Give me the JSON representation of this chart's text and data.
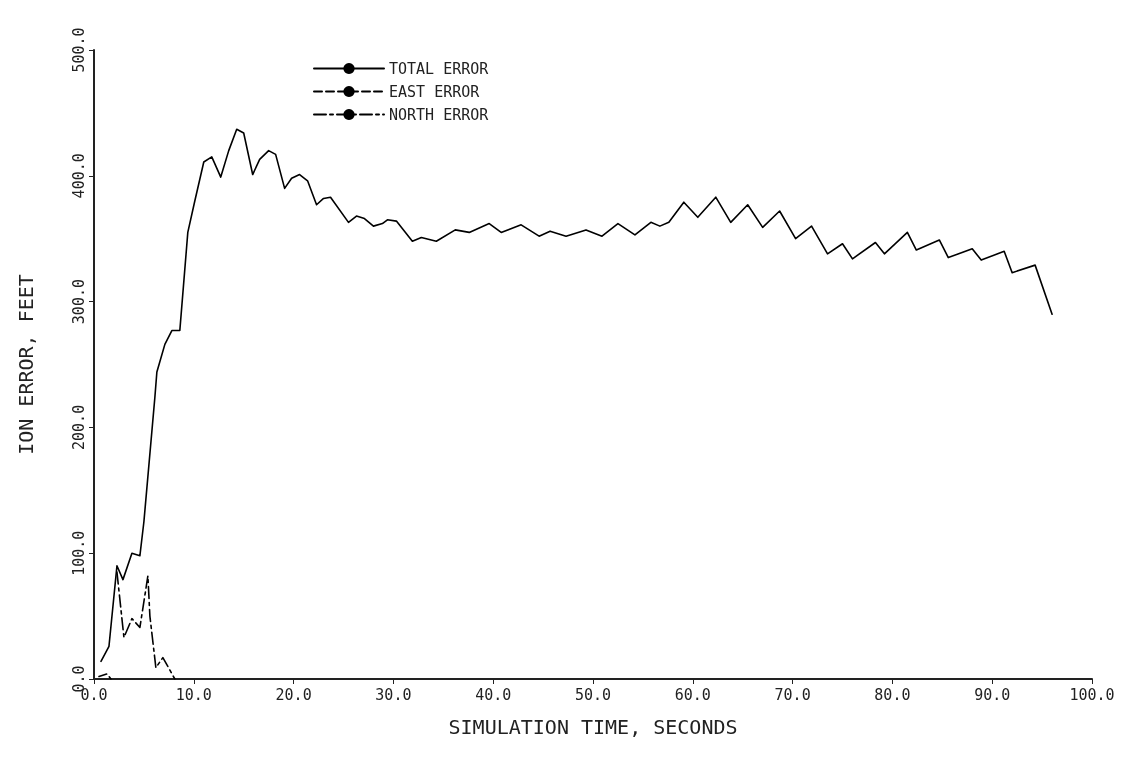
{
  "chart_data": {
    "type": "line",
    "xlabel": "SIMULATION TIME, SECONDS",
    "ylabel": "ION ERROR, FEET",
    "xlim": [
      0,
      100
    ],
    "ylim": [
      0,
      500
    ],
    "xticks": [
      {
        "value": 0,
        "label": "0.0"
      },
      {
        "value": 10,
        "label": "10.0"
      },
      {
        "value": 20,
        "label": "20.0"
      },
      {
        "value": 30,
        "label": "30.0"
      },
      {
        "value": 40,
        "label": "40.0"
      },
      {
        "value": 50,
        "label": "50.0"
      },
      {
        "value": 60,
        "label": "60.0"
      },
      {
        "value": 70,
        "label": "70.0"
      },
      {
        "value": 80,
        "label": "80.0"
      },
      {
        "value": 90,
        "label": "90.0"
      },
      {
        "value": 100,
        "label": "100.0"
      }
    ],
    "yticks": [
      {
        "value": 0,
        "label": "0.0"
      },
      {
        "value": 100,
        "label": "100.0"
      },
      {
        "value": 200,
        "label": "200.0"
      },
      {
        "value": 300,
        "label": "300.0"
      },
      {
        "value": 400,
        "label": "400.0"
      },
      {
        "value": 500,
        "label": "500.0"
      }
    ],
    "grid": false,
    "legend": "top left",
    "marker": "none",
    "series": [
      {
        "name": "TOTAL ERROR",
        "color": "#000000",
        "line_style": "solid",
        "x": [
          0.7,
          1.5,
          2.3,
          2.9,
          3.8,
          4.6,
          5.0,
          6.1,
          6.3,
          7.1,
          7.8,
          8.6,
          9.4,
          10.1,
          11.0,
          11.8,
          12.7,
          13.5,
          14.3,
          15.0,
          15.9,
          16.6,
          17.5,
          18.2,
          19.1,
          19.8,
          20.6,
          21.4,
          22.3,
          23.0,
          23.7,
          25.5,
          26.3,
          27.1,
          28.0,
          28.9,
          29.4,
          30.3,
          31.9,
          32.8,
          34.3,
          36.2,
          37.6,
          39.6,
          40.8,
          42.8,
          44.6,
          45.7,
          47.3,
          49.3,
          50.9,
          52.5,
          54.2,
          55.8,
          56.7,
          57.6,
          59.1,
          60.5,
          62.3,
          63.8,
          65.5,
          67.0,
          68.7,
          70.3,
          71.9,
          73.5,
          75.0,
          76.0,
          78.3,
          79.2,
          81.5,
          82.4,
          84.7,
          85.6,
          88.0,
          88.9,
          91.2,
          92.0,
          94.3,
          96.0
        ],
        "values": [
          14,
          26,
          90,
          79,
          100,
          98,
          125,
          224,
          244,
          266,
          277,
          277,
          355,
          380,
          411,
          415,
          399,
          420,
          437,
          434,
          401,
          413,
          420,
          417,
          390,
          398,
          401,
          396,
          377,
          382,
          383,
          363,
          368,
          366,
          360,
          362,
          365,
          364,
          348,
          351,
          348,
          357,
          355,
          362,
          355,
          361,
          352,
          356,
          352,
          357,
          352,
          362,
          353,
          363,
          360,
          363,
          379,
          367,
          383,
          363,
          377,
          359,
          372,
          350,
          360,
          338,
          346,
          334,
          347,
          338,
          355,
          341,
          349,
          335,
          342,
          333,
          340,
          323,
          329,
          290
        ]
      },
      {
        "name": "EAST ERROR",
        "color": "#000000",
        "line_style": "dashed",
        "x": [
          0.5,
          1.3,
          1.7
        ],
        "values": [
          2,
          4,
          0
        ]
      },
      {
        "name": "NORTH ERROR",
        "color": "#000000",
        "line_style": "dashdot",
        "x": [
          2.3,
          3.0,
          3.8,
          4.6,
          5.4,
          5.6,
          6.2,
          6.9,
          8.1
        ],
        "values": [
          85,
          33,
          48,
          41,
          82,
          50,
          9,
          17,
          0
        ]
      }
    ]
  }
}
